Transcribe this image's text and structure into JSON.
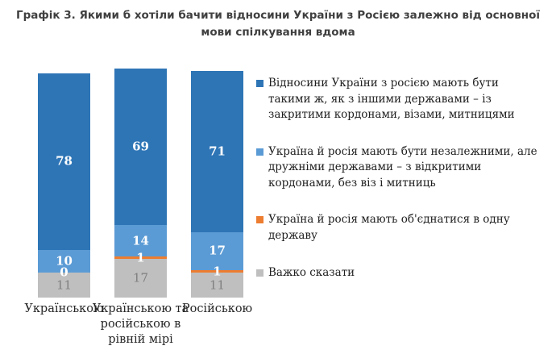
{
  "title": "Графік 3. Якими б хотіли бачити відносини України з Росією залежно від основної мови спілкування вдома",
  "chart_data": {
    "type": "bar",
    "stacked": true,
    "orientation": "vertical",
    "grid": false,
    "legend_position": "right",
    "value_labels": true,
    "axis_hidden": true,
    "categories": [
      "Українською",
      "Українською та російською в рівній мірі",
      "Російською"
    ],
    "series": [
      {
        "name": "Відносини України з росією мають бути\nтакими ж, як з іншими державами  – із\nзакритими кордонами, візами, митницями",
        "color": "#2E75B6",
        "values": [
          78,
          69,
          71
        ]
      },
      {
        "name": "Україна й росія мають бути незалежними, але\nдружніми державами  – з відкритими\nкордонами, без віз і митниць",
        "color": "#5B9BD5",
        "values": [
          10,
          14,
          17
        ]
      },
      {
        "name": "Україна й росія мають об'єднатися в одну\nдержаву",
        "color": "#ED7D31",
        "values": [
          0,
          1,
          1
        ]
      },
      {
        "name": "Важко сказати",
        "color": "#BFBFBF",
        "values": [
          11,
          17,
          11
        ]
      }
    ]
  }
}
